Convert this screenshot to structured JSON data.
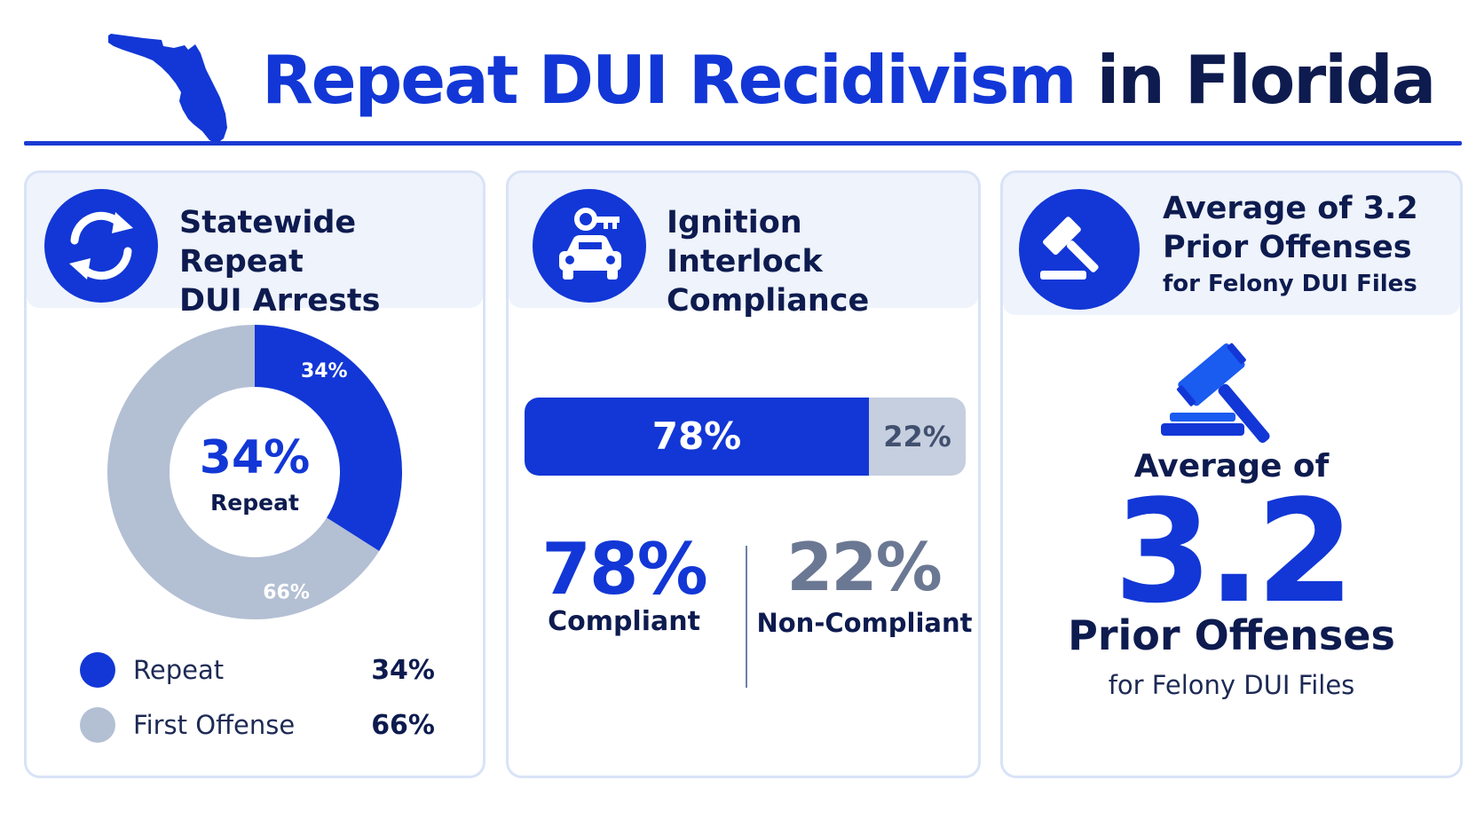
{
  "header": {
    "title_part1": "Repeat DUI Recidivism",
    "title_part2": "in Florida",
    "icon": "florida-map-icon"
  },
  "colors": {
    "primary": "#1237d6",
    "secondary": "#b3bfd3",
    "dark_text": "#0d1b4f",
    "slate": "#6b7893"
  },
  "card1": {
    "icon": "refresh-cycle-icon",
    "title_line1": "Statewide Repeat",
    "title_line2": "DUI Arrests",
    "center_value": "34%",
    "center_label": "Repeat",
    "legend": [
      {
        "label": "Repeat",
        "value": "34%"
      },
      {
        "label": "First Offense",
        "value": "66%"
      }
    ]
  },
  "card2": {
    "icon": "car-key-icon",
    "title_line1": "Ignition Interlock",
    "title_line2": "Compliance",
    "compliant_value": "78%",
    "compliant_label": "Compliant",
    "noncompliant_value": "22%",
    "noncompliant_label": "Non-Compliant"
  },
  "card3": {
    "icon": "gavel-icon",
    "title_line1": "Average of 3.2",
    "title_line2": "Prior Offenses",
    "title_sub": "for Felony DUI Files",
    "line_average": "Average of",
    "big_value": "3.2",
    "line_prior": "Prior Offenses",
    "line_sub": "for Felony DUI Files"
  },
  "chart_data": [
    {
      "type": "pie",
      "categories": [
        "Repeat",
        "First Offense"
      ],
      "values": [
        34,
        66
      ],
      "data_labels": [
        "34%",
        "66%"
      ],
      "unit": "%",
      "donut": true,
      "title": "Statewide Repeat DUI Arrests"
    },
    {
      "type": "bar",
      "categories": [
        "Compliant",
        "Non-Compliant"
      ],
      "values": [
        78,
        22
      ],
      "data_labels": [
        "78%",
        "22%"
      ],
      "unit": "%",
      "stacked": true,
      "title": "Ignition Interlock Compliance"
    }
  ]
}
